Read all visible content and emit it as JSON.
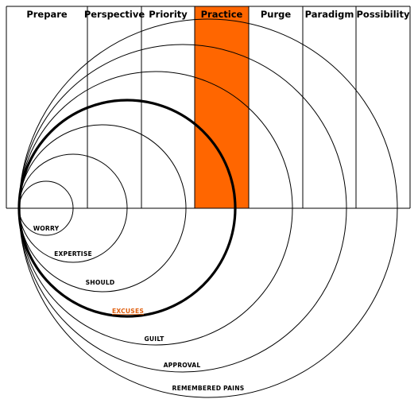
{
  "columns": [
    {
      "label": "Prepare",
      "highlight": false
    },
    {
      "label": "Perspective",
      "highlight": false
    },
    {
      "label": "Priority",
      "highlight": false
    },
    {
      "label": "Practice",
      "highlight": true
    },
    {
      "label": "Purge",
      "highlight": false
    },
    {
      "label": "Paradigm",
      "highlight": false
    },
    {
      "label": "Possibility",
      "highlight": false
    }
  ],
  "rings": [
    {
      "label": "WORRY",
      "bold": false,
      "highlight": false
    },
    {
      "label": "EXPERTISE",
      "bold": false,
      "highlight": false
    },
    {
      "label": "SHOULD",
      "bold": false,
      "highlight": false
    },
    {
      "label": "EXCUSES",
      "bold": true,
      "highlight": true
    },
    {
      "label": "GUILT",
      "bold": false,
      "highlight": false
    },
    {
      "label": "APPROVAL",
      "bold": false,
      "highlight": false
    },
    {
      "label": "REMEMBERED PAINS",
      "bold": false,
      "highlight": false
    }
  ],
  "colors": {
    "highlight_fill": "#ff6600",
    "highlight_label": "#e06010",
    "line": "#000000"
  }
}
